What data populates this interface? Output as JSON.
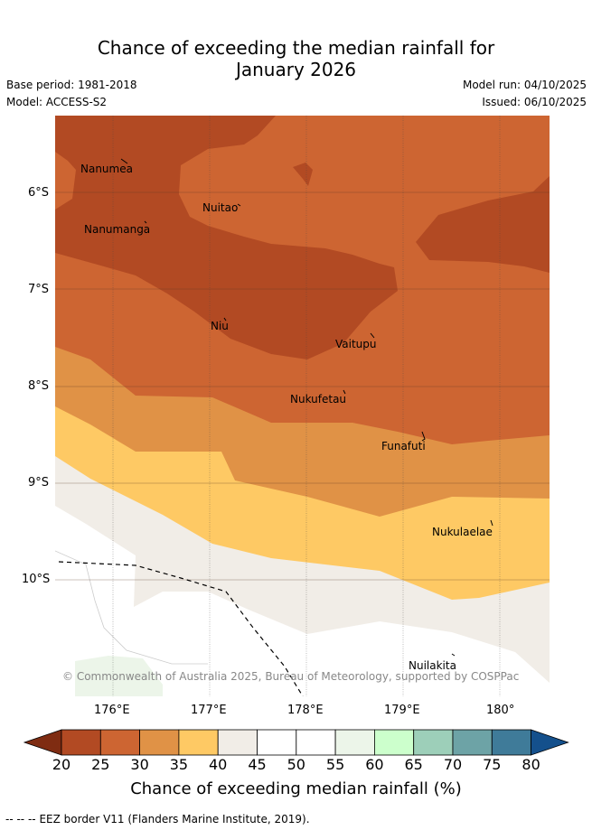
{
  "header": {
    "title_line1": "Chance of exceeding the median rainfall for",
    "title_line2": "January 2026",
    "base_period": "Base period: 1981-2018",
    "model": "Model: ACCESS-S2",
    "model_run": "Model run: 04/10/2025",
    "issued": "Issued: 06/10/2025"
  },
  "map": {
    "lat_labels": [
      "6°S",
      "7°S",
      "8°S",
      "9°S",
      "10°S"
    ],
    "lon_labels": [
      "176°E",
      "177°E",
      "178°E",
      "179°E",
      "180°"
    ],
    "islands": [
      "Nanumea",
      "Nuitao",
      "Nanumanga",
      "Niu",
      "Vaitupu",
      "Nukufetau",
      "Funafuti",
      "Nukulaelae",
      "Nuilakita"
    ],
    "copyright": "© Commonwealth of Australia 2025, Bureau of Meteorology, supported by COSPPac"
  },
  "colorbar": {
    "ticks": [
      "20",
      "25",
      "30",
      "35",
      "40",
      "45",
      "50",
      "55",
      "60",
      "65",
      "70",
      "75",
      "80"
    ],
    "colors": [
      "#7f2c12",
      "#b24a23",
      "#cd6532",
      "#e09246",
      "#fec964",
      "#f1ede7",
      "#ffffff",
      "#ffffff",
      "#ecf5e9",
      "#ccffcc",
      "#9dcfb9",
      "#6da3a6",
      "#3f7b99",
      "#14508c"
    ],
    "label": "Chance of exceeding median rainfall (%)"
  },
  "legend": {
    "eez": "EEZ border V11 (Flanders Marine Institute, 2019).",
    "eez_dashes": "--  --  --"
  }
}
